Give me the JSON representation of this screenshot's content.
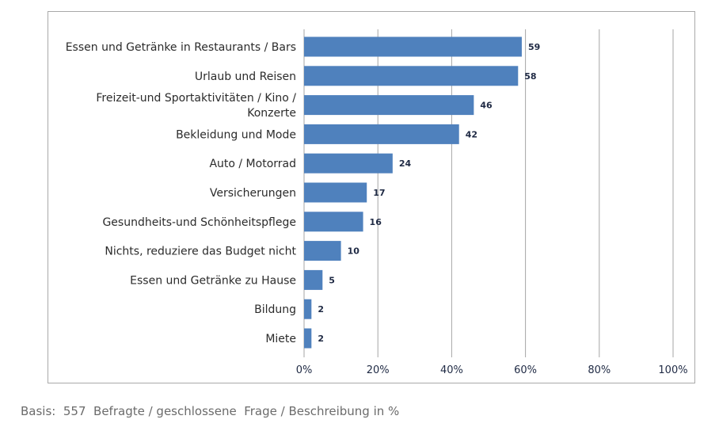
{
  "chart_data": {
    "type": "bar",
    "orientation": "horizontal",
    "categories": [
      [
        "Essen und Getränke in Restaurants / Bars"
      ],
      [
        "Urlaub und Reisen"
      ],
      [
        "Freizeit-und Sportaktivitäten / Kino /",
        "Konzerte"
      ],
      [
        "Bekleidung und Mode"
      ],
      [
        "Auto / Motorrad"
      ],
      [
        "Versicherungen"
      ],
      [
        "Gesundheits-und Schönheitspflege"
      ],
      [
        "Nichts, reduziere das Budget nicht"
      ],
      [
        "Essen und Getränke zu Hause"
      ],
      [
        "Bildung"
      ],
      [
        "Miete"
      ]
    ],
    "values": [
      59,
      58,
      46,
      42,
      24,
      17,
      16,
      10,
      5,
      2,
      2
    ],
    "xlim": [
      0,
      100
    ],
    "ticks": [
      0,
      20,
      40,
      60,
      80,
      100
    ],
    "tick_labels": [
      "0%",
      "20%",
      "40%",
      "60%",
      "80%",
      "100%"
    ],
    "grid": "vertical",
    "bar_color": "#4f81bd"
  },
  "footnote": "Basis:  557  Befragte / geschlossene  Frage / Beschreibung in %"
}
